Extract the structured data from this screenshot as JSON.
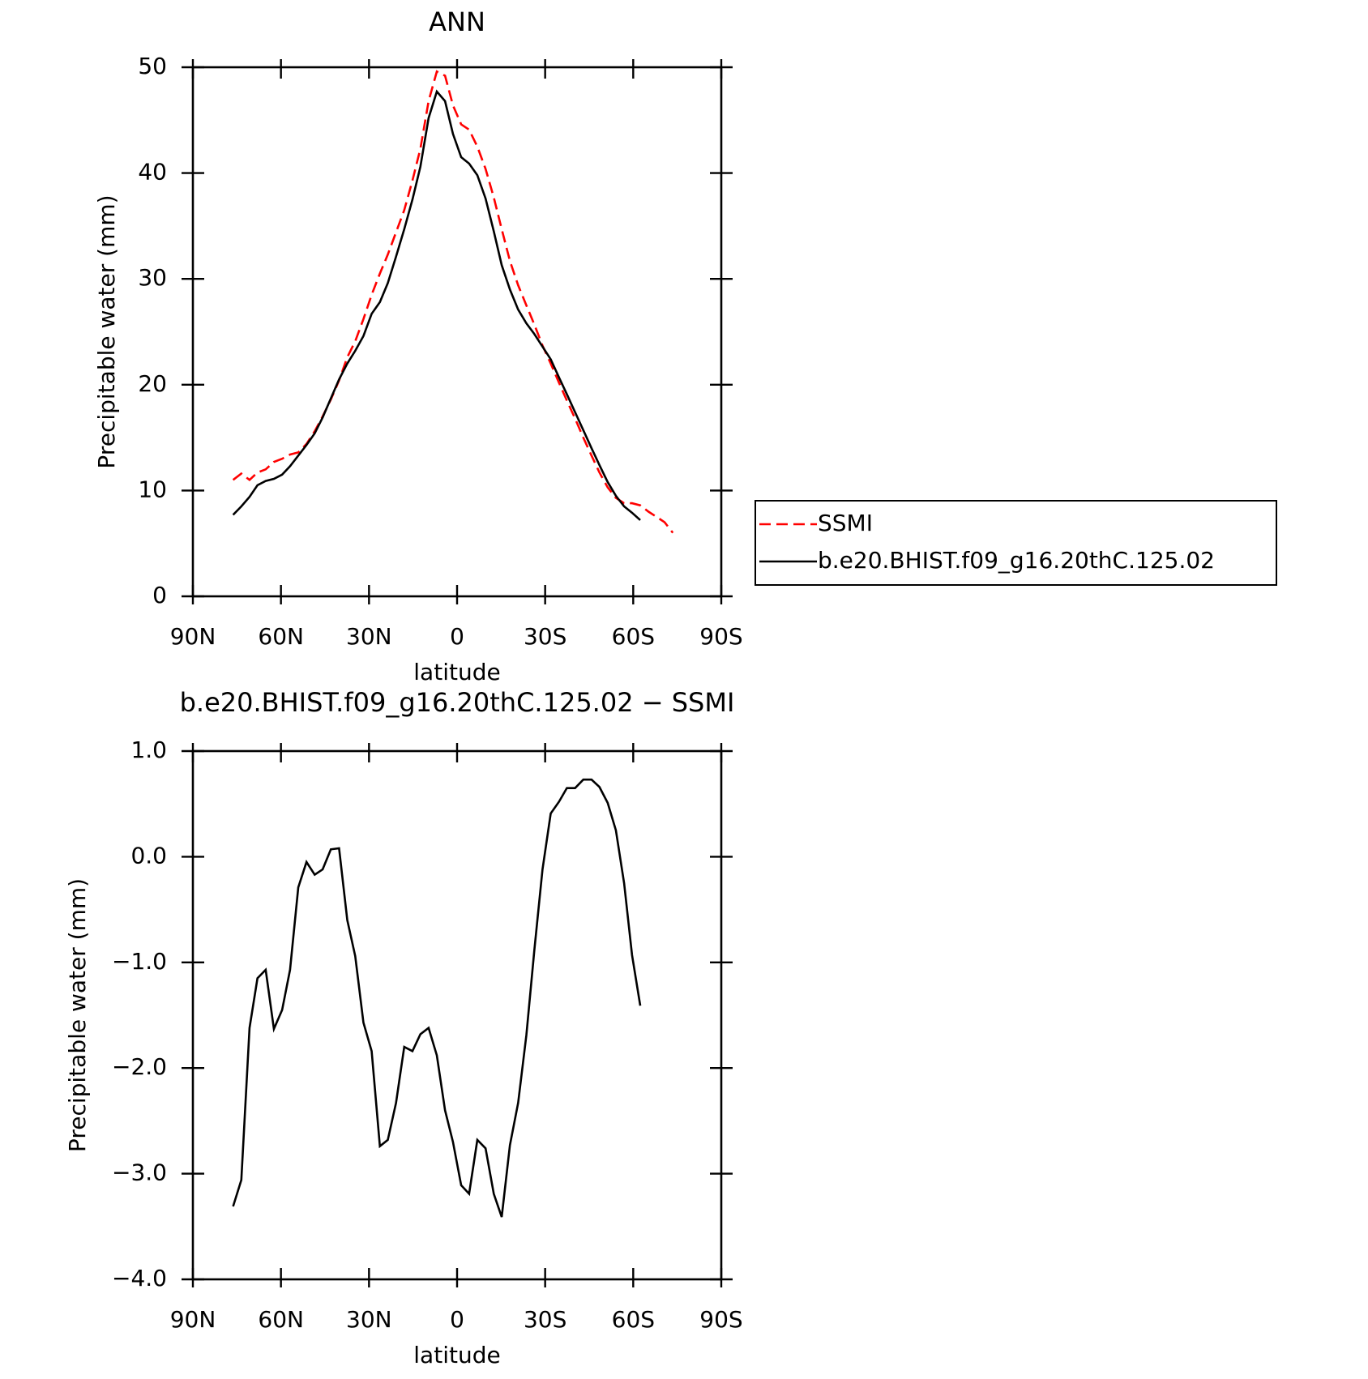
{
  "chart_data": [
    {
      "type": "line",
      "title": "ANN",
      "xlabel": "latitude",
      "ylabel": "Precipitable water (mm)",
      "x": [
        76.3,
        73.5,
        70.7,
        68.0,
        65.2,
        62.4,
        59.6,
        56.9,
        54.1,
        51.3,
        48.5,
        45.8,
        43.0,
        40.2,
        37.4,
        34.7,
        31.9,
        29.1,
        26.3,
        23.6,
        20.8,
        18.0,
        15.2,
        12.5,
        9.7,
        6.9,
        4.1,
        1.4,
        -1.4,
        -4.1,
        -6.9,
        -9.7,
        -12.5,
        -15.2,
        -18.0,
        -20.8,
        -23.6,
        -26.3,
        -29.1,
        -31.9,
        -34.7,
        -37.4,
        -40.2,
        -43.0,
        -45.8,
        -48.5,
        -51.3,
        -54.1,
        -56.9,
        -59.6,
        -62.4,
        -65.2,
        -68.0,
        -70.7,
        -73.5
      ],
      "series": [
        {
          "name": "SSMI",
          "color": "#ff0000",
          "line_style": "dashed",
          "values": [
            11.0,
            11.6,
            11.0,
            11.7,
            12.0,
            12.7,
            13.0,
            13.4,
            13.6,
            14.4,
            15.6,
            17.0,
            18.6,
            20.4,
            22.6,
            24.1,
            26.2,
            28.5,
            30.5,
            32.3,
            34.4,
            36.5,
            39.3,
            42.3,
            46.8,
            49.6,
            49.2,
            46.4,
            44.6,
            44.1,
            42.5,
            40.4,
            37.7,
            34.7,
            31.7,
            29.4,
            27.5,
            25.7,
            23.7,
            22.0,
            20.2,
            18.5,
            16.8,
            15.0,
            13.3,
            11.7,
            10.3,
            9.3,
            8.8,
            8.8,
            8.6,
            8.0,
            7.5,
            7.0,
            6.0
          ]
        },
        {
          "name": "b.e20.BHIST.f09_g16.20thC.125.02",
          "color": "#000000",
          "line_style": "solid",
          "values": [
            7.7,
            8.5,
            9.4,
            10.5,
            10.9,
            11.1,
            11.5,
            12.3,
            13.3,
            14.3,
            15.4,
            16.9,
            18.7,
            20.5,
            22.0,
            23.2,
            24.6,
            26.7,
            27.8,
            29.6,
            32.1,
            34.7,
            37.5,
            40.6,
            45.2,
            47.7,
            46.8,
            43.7,
            41.5,
            40.9,
            39.8,
            37.6,
            34.5,
            31.3,
            29.0,
            27.1,
            25.8,
            24.8,
            23.6,
            22.4,
            20.7,
            19.1,
            17.4,
            15.7,
            14.0,
            12.4,
            10.8,
            9.5,
            8.5,
            7.9,
            7.2,
            null,
            null,
            null,
            null
          ]
        }
      ],
      "xlim": [
        90,
        -90
      ],
      "xticks": [
        {
          "value": 90,
          "label": "90N"
        },
        {
          "value": 60,
          "label": "60N"
        },
        {
          "value": 30,
          "label": "30N"
        },
        0,
        {
          "value": -30,
          "label": "30S"
        },
        {
          "value": -60,
          "label": "60S"
        },
        {
          "value": -90,
          "label": "90S"
        }
      ],
      "ylim": [
        0,
        50
      ],
      "yticks": [
        0,
        10,
        20,
        30,
        40,
        50
      ],
      "legend": "right"
    },
    {
      "type": "line",
      "title": "b.e20.BHIST.f09_g16.20thC.125.02 − SSMI",
      "xlabel": "latitude",
      "ylabel": "Precipitable water (mm)",
      "x": [
        76.3,
        73.5,
        70.7,
        68.0,
        65.2,
        62.4,
        59.6,
        56.9,
        54.1,
        51.3,
        48.5,
        45.8,
        43.0,
        40.2,
        37.4,
        34.7,
        31.9,
        29.1,
        26.3,
        23.6,
        20.8,
        18.0,
        15.2,
        12.5,
        9.7,
        6.9,
        4.1,
        1.4,
        -1.4,
        -4.1,
        -6.9,
        -9.7,
        -12.5,
        -15.2,
        -18.0,
        -20.8,
        -23.6,
        -26.3,
        -29.1,
        -31.9,
        -34.7,
        -37.4,
        -40.2,
        -43.0,
        -45.8,
        -48.5,
        -51.3,
        -54.1,
        -56.9,
        -59.6,
        -62.4
      ],
      "color": "#000000",
      "line_style": "solid",
      "values": [
        -3.31,
        -3.06,
        -1.62,
        -1.15,
        -1.07,
        -1.63,
        -1.45,
        -1.07,
        -0.29,
        -0.05,
        -0.17,
        -0.12,
        0.07,
        0.08,
        -0.6,
        -0.94,
        -1.57,
        -1.84,
        -2.74,
        -2.68,
        -2.33,
        -1.8,
        -1.84,
        -1.68,
        -1.62,
        -1.88,
        -2.4,
        -2.7,
        -3.11,
        -3.19,
        -2.68,
        -2.76,
        -3.19,
        -3.41,
        -2.73,
        -2.33,
        -1.69,
        -0.89,
        -0.12,
        0.41,
        0.52,
        0.65,
        0.65,
        0.73,
        0.73,
        0.66,
        0.51,
        0.25,
        -0.25,
        -0.93,
        -1.41
      ],
      "xlim": [
        90,
        -90
      ],
      "xticks": [
        {
          "value": 90,
          "label": "90N"
        },
        {
          "value": 60,
          "label": "60N"
        },
        {
          "value": 30,
          "label": "30N"
        },
        0,
        {
          "value": -30,
          "label": "30S"
        },
        {
          "value": -60,
          "label": "60S"
        },
        {
          "value": -90,
          "label": "90S"
        }
      ],
      "ylim": [
        -4,
        1
      ],
      "yticks": [
        {
          "value": -4,
          "label": "−4.0"
        },
        {
          "value": -3,
          "label": "−3.0"
        },
        {
          "value": -2,
          "label": "−2.0"
        },
        {
          "value": -1,
          "label": "−1.0"
        },
        {
          "value": 0,
          "label": "0.0"
        },
        {
          "value": 1,
          "label": "1.0"
        }
      ]
    }
  ]
}
